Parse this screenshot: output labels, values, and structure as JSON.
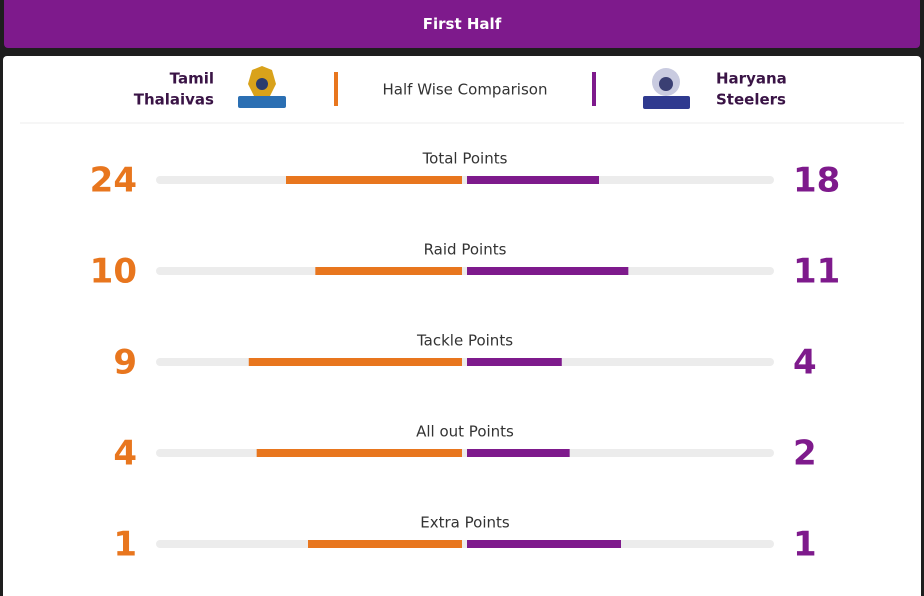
{
  "header": {
    "title": "First Half"
  },
  "teams": {
    "home": [
      "Tamil",
      "Thalaivas"
    ],
    "away": [
      "Haryana",
      "Steelers"
    ],
    "caption": "Half Wise Comparison"
  },
  "colors": {
    "home": "#e8761e",
    "away": "#7e1a8c"
  },
  "stats": [
    {
      "label": "Total Points",
      "home": 24,
      "away": 18
    },
    {
      "label": "Raid Points",
      "home": 10,
      "away": 11
    },
    {
      "label": "Tackle Points",
      "home": 9,
      "away": 4
    },
    {
      "label": "All out Points",
      "home": 4,
      "away": 2
    },
    {
      "label": "Extra Points",
      "home": 1,
      "away": 1
    }
  ]
}
